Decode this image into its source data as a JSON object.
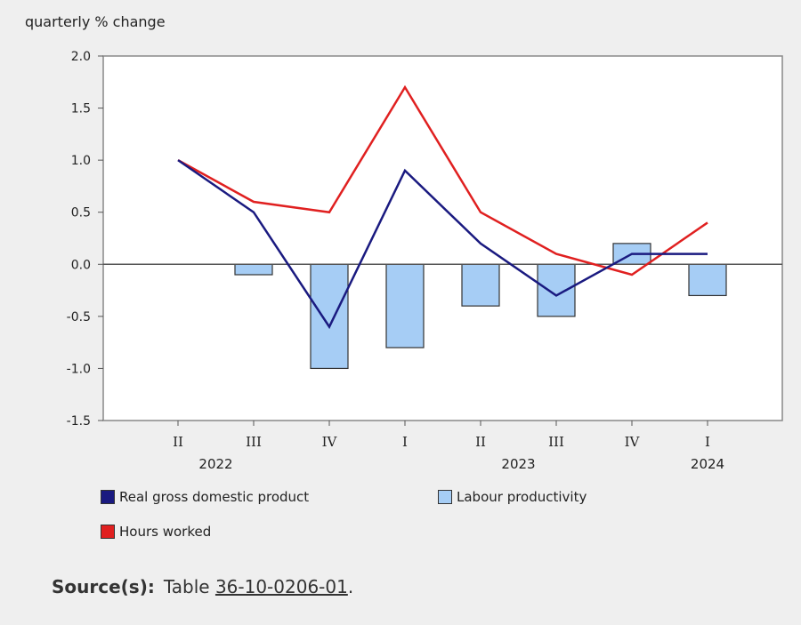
{
  "unit_label": "quarterly % change",
  "source": {
    "label": "Source(s):",
    "prefix": "Table",
    "link_text": "36-10-0206-01",
    "suffix": "."
  },
  "legend": [
    {
      "label": "Real gross domestic product",
      "color": "#1a1a80",
      "kind": "line"
    },
    {
      "label": "Labour productivity",
      "color": "#a6cdf5",
      "kind": "bar"
    },
    {
      "label": "Hours worked",
      "color": "#e02020",
      "kind": "line"
    }
  ],
  "chart_data": {
    "type": "bar",
    "categories": [
      "II",
      "III",
      "IV",
      "I",
      "II",
      "III",
      "IV",
      "I"
    ],
    "years": [
      {
        "label": "2022",
        "index": 0.5
      },
      {
        "label": "2023",
        "index": 4.5
      },
      {
        "label": "2024",
        "index": 7
      }
    ],
    "ylabel": "quarterly % change",
    "ylim": [
      -1.5,
      2.0
    ],
    "yticks": [
      "2.0",
      "1.5",
      "1.0",
      "0.5",
      "0.0",
      "-0.5",
      "-1.0",
      "-1.5"
    ],
    "ytick_values": [
      2.0,
      1.5,
      1.0,
      0.5,
      0.0,
      -0.5,
      -1.0,
      -1.5
    ],
    "series": [
      {
        "name": "Labour productivity",
        "type": "bar",
        "color": "#a6cdf5",
        "values": [
          0.0,
          -0.1,
          -1.0,
          -0.8,
          -0.4,
          -0.5,
          0.2,
          -0.3
        ]
      },
      {
        "name": "Real gross domestic product",
        "type": "line",
        "color": "#1a1a80",
        "values": [
          1.0,
          0.5,
          -0.6,
          0.9,
          0.2,
          -0.3,
          0.1,
          0.1
        ]
      },
      {
        "name": "Hours worked",
        "type": "line",
        "color": "#e02020",
        "values": [
          1.0,
          0.6,
          0.5,
          1.7,
          0.5,
          0.1,
          -0.1,
          0.4
        ]
      }
    ],
    "grid": false,
    "legend_position": "bottom"
  }
}
